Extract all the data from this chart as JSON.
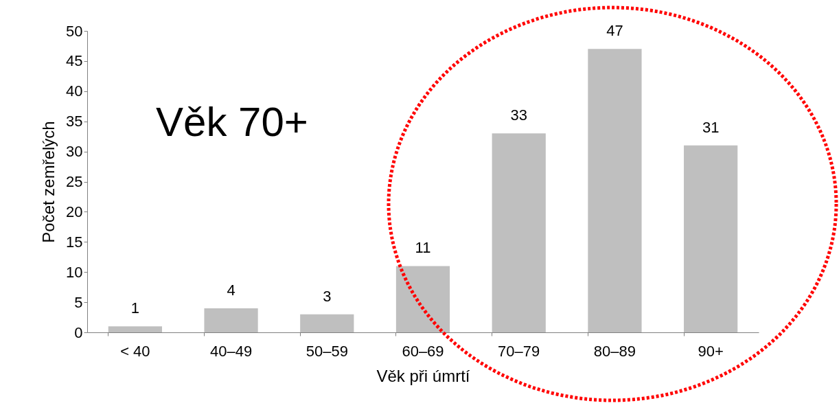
{
  "chart_data": {
    "type": "bar",
    "categories": [
      "< 40",
      "40–49",
      "50–59",
      "60–69",
      "70–79",
      "80–89",
      "90+"
    ],
    "values": [
      1,
      4,
      3,
      11,
      33,
      47,
      31
    ],
    "color": "#bfbfbf",
    "xlabel": "Věk při úmrtí",
    "ylabel": "Počet zemřelých",
    "ylim": [
      0,
      50
    ],
    "yticks": [
      0,
      5,
      10,
      15,
      20,
      25,
      30,
      35,
      40,
      45,
      50
    ],
    "annotations": [
      "Věk 70+"
    ],
    "data_labels": true,
    "grid": false
  }
}
